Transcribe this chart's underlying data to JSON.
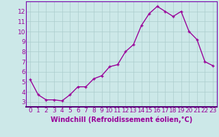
{
  "x": [
    0,
    1,
    2,
    3,
    4,
    5,
    6,
    7,
    8,
    9,
    10,
    11,
    12,
    13,
    14,
    15,
    16,
    17,
    18,
    19,
    20,
    21,
    22,
    23
  ],
  "y": [
    5.2,
    3.7,
    3.2,
    3.2,
    3.1,
    3.7,
    4.5,
    4.5,
    5.3,
    5.6,
    6.5,
    6.7,
    8.0,
    8.7,
    10.6,
    11.8,
    12.5,
    12.0,
    11.5,
    12.0,
    10.0,
    9.2,
    7.0,
    6.6
  ],
  "line_color": "#990099",
  "marker": "+",
  "marker_size": 3,
  "bg_color": "#cce8e8",
  "grid_color": "#aacccc",
  "spine_color": "#7700aa",
  "xlim": [
    -0.5,
    23.5
  ],
  "ylim": [
    2.5,
    13.0
  ],
  "yticks": [
    3,
    4,
    5,
    6,
    7,
    8,
    9,
    10,
    11,
    12
  ],
  "xticks": [
    0,
    1,
    2,
    3,
    4,
    5,
    6,
    7,
    8,
    9,
    10,
    11,
    12,
    13,
    14,
    15,
    16,
    17,
    18,
    19,
    20,
    21,
    22,
    23
  ],
  "tick_color": "#990099",
  "label_color": "#990099",
  "font_size": 6.5,
  "xlabel": "Windchill (Refroidissement éolien,°C)",
  "xlabel_fontsize": 7.0,
  "linewidth": 1.0,
  "markeredgewidth": 1.0
}
